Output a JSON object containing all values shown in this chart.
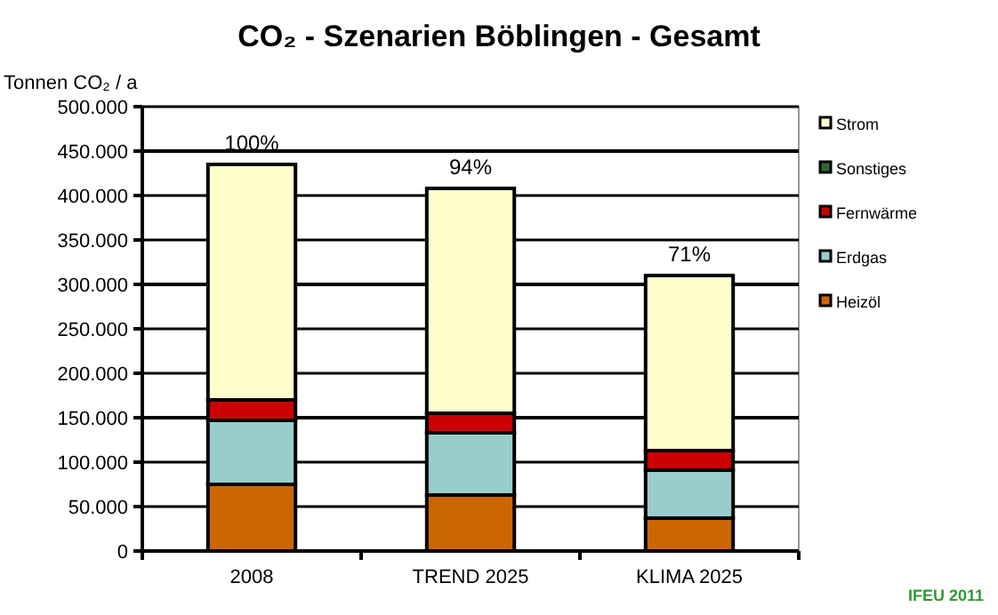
{
  "chart_data": {
    "type": "bar",
    "stacked": true,
    "title": "CO₂ - Szenarien Böblingen - Gesamt",
    "ylabel": "Tonnen CO₂ / a",
    "categories": [
      "2008",
      "TREND 2025",
      "KLIMA 2025"
    ],
    "series": [
      {
        "name": "Heizöl",
        "color": "#cc6600",
        "values": [
          75000,
          63000,
          37000
        ]
      },
      {
        "name": "Erdgas",
        "color": "#99cccc",
        "values": [
          72000,
          70000,
          54000
        ]
      },
      {
        "name": "Fernwärme",
        "color": "#cc0000",
        "values": [
          23000,
          22000,
          22000
        ]
      },
      {
        "name": "Sonstiges",
        "color": "#336633",
        "values": [
          0,
          0,
          0
        ]
      },
      {
        "name": "Strom",
        "color": "#ffffcc",
        "values": [
          265000,
          253000,
          197000
        ]
      }
    ],
    "ylim": [
      0,
      500000
    ],
    "yticks": [
      {
        "value": 0,
        "label": "0"
      },
      {
        "value": 50000,
        "label": "50.000"
      },
      {
        "value": 100000,
        "label": "100.000"
      },
      {
        "value": 150000,
        "label": "150.000"
      },
      {
        "value": 200000,
        "label": "200.000"
      },
      {
        "value": 250000,
        "label": "250.000"
      },
      {
        "value": 300000,
        "label": "300.000"
      },
      {
        "value": 350000,
        "label": "350.000"
      },
      {
        "value": 400000,
        "label": "400.000"
      },
      {
        "value": 450000,
        "label": "450.000"
      },
      {
        "value": 500000,
        "label": "500.000"
      }
    ],
    "grid": "y",
    "legend": "right",
    "annotations": [
      {
        "text": "100%",
        "x": "2008",
        "y": 435000
      },
      {
        "text": "94%",
        "x": "TREND 2025",
        "y": 408000
      },
      {
        "text": "71%",
        "x": "KLIMA 2025",
        "y": 310000
      },
      "IFEU 2011"
    ]
  }
}
